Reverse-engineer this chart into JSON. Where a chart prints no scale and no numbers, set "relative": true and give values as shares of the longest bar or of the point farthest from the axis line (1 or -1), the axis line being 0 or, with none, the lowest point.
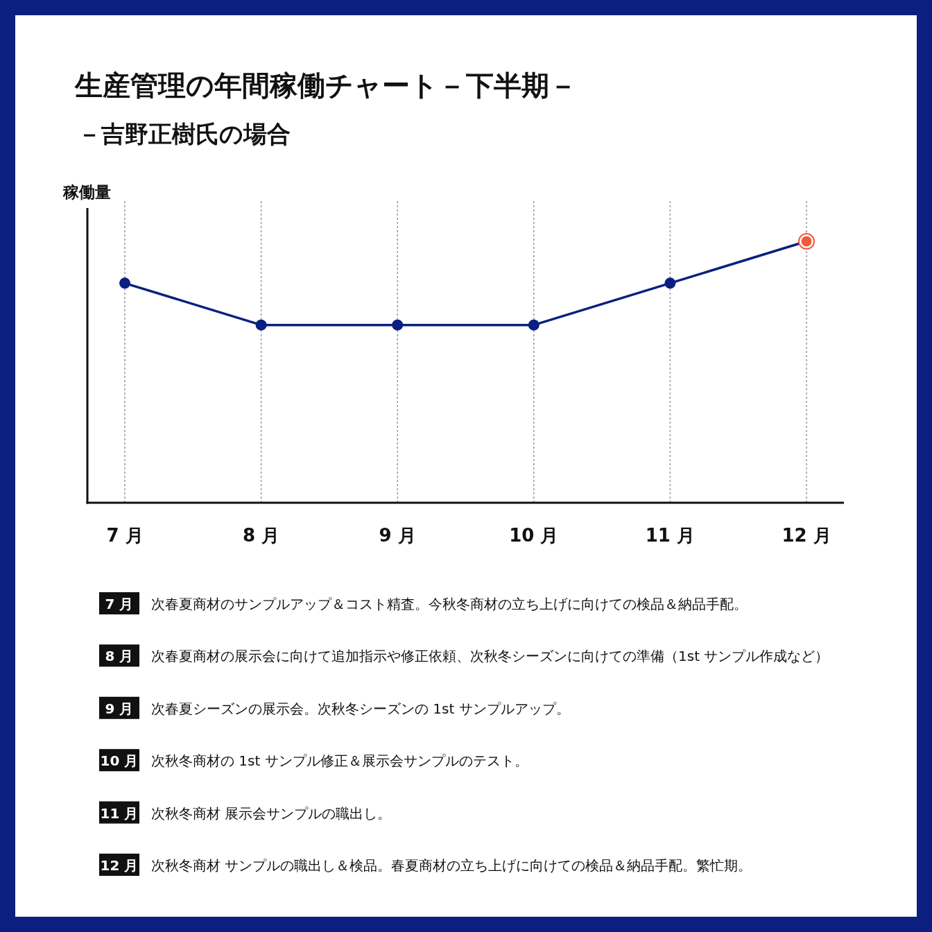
{
  "chart_data": {
    "type": "line",
    "title": "生産管理の年間稼働チャート－下半期－",
    "subtitle": "－吉野正樹氏の場合",
    "ylabel": "稼働量",
    "categories": [
      "7 月",
      "8 月",
      "9 月",
      "10 月",
      "11 月",
      "12 月"
    ],
    "series": [
      {
        "color": "#0a1f80",
        "colors": [
          "#0a1f80",
          "#0a1f80",
          "#0a1f80",
          "#0a1f80",
          "#0a1f80",
          "#f05a3c"
        ],
        "values": [
          0.84,
          0.68,
          0.68,
          0.68,
          0.84,
          1
        ]
      }
    ],
    "relative": true,
    "grid": "x",
    "marker": "circle",
    "annotations": [
      "次春夏商材のサンプルアップ＆コスト精査。今秋冬商材の立ち上げに向けての検品＆納品手配。",
      "次春夏商材の展示会に向けて追加指示や修正依頼、次秋冬シーズンに向けての準備（1st サンプル作成など）",
      "次春夏シーズンの展示会。次秋冬シーズンの 1st サンプルアップ。",
      "次秋冬商材の 1st サンプル修正＆展示会サンプルのテスト。",
      "次秋冬商材 展示会サンプルの職出し。",
      "次秋冬商材 サンプルの職出し＆検品。春夏商材の立ち上げに向けての検品＆納品手配。繁忙期。"
    ]
  }
}
